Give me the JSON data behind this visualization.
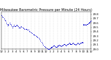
{
  "title": "Milwaukee Barometric Pressure per Minute (24 Hours)",
  "title_fontsize": 3.5,
  "bg_color": "#ffffff",
  "dot_color": "#0000cc",
  "dot_size": 0.5,
  "grid_color": "#bbbbbb",
  "tick_color": "#000000",
  "ylabel_fontsize": 2.8,
  "xlabel_fontsize": 2.8,
  "xlim": [
    0,
    1440
  ],
  "ylim": [
    29.0,
    29.85
  ],
  "yticks": [
    29.0,
    29.1,
    29.2,
    29.3,
    29.4,
    29.5,
    29.6,
    29.7,
    29.8
  ],
  "ytick_labels": [
    "29.0",
    "29.1",
    "29.2",
    "29.3",
    "29.4",
    "29.5",
    "29.6",
    "29.7",
    "29.8"
  ],
  "xticks": [
    0,
    60,
    120,
    180,
    240,
    300,
    360,
    420,
    480,
    540,
    600,
    660,
    720,
    780,
    840,
    900,
    960,
    1020,
    1080,
    1140,
    1200,
    1260,
    1320,
    1380,
    1440
  ],
  "xtick_labels": [
    "12",
    "1",
    "2",
    "3",
    "4",
    "5",
    "6",
    "7",
    "8",
    "9",
    "10",
    "11",
    "12",
    "1",
    "2",
    "3",
    "4",
    "5",
    "6",
    "7",
    "8",
    "9",
    "10",
    "11",
    "12"
  ],
  "pressure_data": [
    [
      0,
      29.78
    ],
    [
      15,
      29.75
    ],
    [
      30,
      29.73
    ],
    [
      45,
      29.7
    ],
    [
      60,
      29.67
    ],
    [
      70,
      29.65
    ],
    [
      80,
      29.6
    ],
    [
      90,
      29.57
    ],
    [
      100,
      29.54
    ],
    [
      110,
      29.56
    ],
    [
      120,
      29.58
    ],
    [
      135,
      29.6
    ],
    [
      150,
      29.58
    ],
    [
      160,
      29.55
    ],
    [
      170,
      29.52
    ],
    [
      180,
      29.5
    ],
    [
      190,
      29.52
    ],
    [
      200,
      29.55
    ],
    [
      210,
      29.53
    ],
    [
      225,
      29.52
    ],
    [
      240,
      29.54
    ],
    [
      250,
      29.56
    ],
    [
      260,
      29.54
    ],
    [
      270,
      29.52
    ],
    [
      280,
      29.5
    ],
    [
      290,
      29.49
    ],
    [
      300,
      29.5
    ],
    [
      315,
      29.52
    ],
    [
      330,
      29.51
    ],
    [
      345,
      29.49
    ],
    [
      360,
      29.48
    ],
    [
      375,
      29.47
    ],
    [
      390,
      29.46
    ],
    [
      405,
      29.46
    ],
    [
      420,
      29.45
    ],
    [
      435,
      29.44
    ],
    [
      450,
      29.42
    ],
    [
      465,
      29.4
    ],
    [
      480,
      29.38
    ],
    [
      495,
      29.36
    ],
    [
      510,
      29.34
    ],
    [
      525,
      29.33
    ],
    [
      540,
      29.32
    ],
    [
      555,
      29.3
    ],
    [
      570,
      29.29
    ],
    [
      585,
      29.27
    ],
    [
      600,
      29.25
    ],
    [
      615,
      29.22
    ],
    [
      630,
      29.19
    ],
    [
      645,
      29.16
    ],
    [
      660,
      29.13
    ],
    [
      675,
      29.1
    ],
    [
      690,
      29.07
    ],
    [
      705,
      29.05
    ],
    [
      720,
      29.03
    ],
    [
      735,
      29.02
    ],
    [
      750,
      29.01
    ],
    [
      760,
      29.0
    ],
    [
      770,
      29.01
    ],
    [
      780,
      29.02
    ],
    [
      790,
      29.03
    ],
    [
      800,
      29.04
    ],
    [
      810,
      29.05
    ],
    [
      820,
      29.06
    ],
    [
      830,
      29.07
    ],
    [
      840,
      29.08
    ],
    [
      850,
      29.08
    ],
    [
      860,
      29.07
    ],
    [
      870,
      29.06
    ],
    [
      880,
      29.05
    ],
    [
      890,
      29.06
    ],
    [
      900,
      29.07
    ],
    [
      910,
      29.08
    ],
    [
      920,
      29.09
    ],
    [
      930,
      29.1
    ],
    [
      940,
      29.09
    ],
    [
      950,
      29.08
    ],
    [
      960,
      29.07
    ],
    [
      970,
      29.08
    ],
    [
      980,
      29.09
    ],
    [
      990,
      29.1
    ],
    [
      1000,
      29.11
    ],
    [
      1010,
      29.12
    ],
    [
      1020,
      29.11
    ],
    [
      1030,
      29.1
    ],
    [
      1040,
      29.09
    ],
    [
      1050,
      29.1
    ],
    [
      1060,
      29.11
    ],
    [
      1070,
      29.12
    ],
    [
      1080,
      29.13
    ],
    [
      1090,
      29.14
    ],
    [
      1100,
      29.13
    ],
    [
      1110,
      29.12
    ],
    [
      1120,
      29.11
    ],
    [
      1130,
      29.12
    ],
    [
      1140,
      29.13
    ],
    [
      1150,
      29.14
    ],
    [
      1160,
      29.13
    ],
    [
      1170,
      29.12
    ],
    [
      1180,
      29.11
    ],
    [
      1190,
      29.1
    ],
    [
      1200,
      29.11
    ],
    [
      1210,
      29.12
    ],
    [
      1220,
      29.13
    ],
    [
      1230,
      29.14
    ],
    [
      1240,
      29.13
    ],
    [
      1250,
      29.12
    ],
    [
      1260,
      29.13
    ],
    [
      1270,
      29.14
    ],
    [
      1280,
      29.15
    ],
    [
      1290,
      29.16
    ],
    [
      1300,
      29.15
    ],
    [
      1310,
      29.16
    ],
    [
      1315,
      29.55
    ],
    [
      1320,
      29.57
    ],
    [
      1330,
      29.56
    ],
    [
      1340,
      29.57
    ],
    [
      1350,
      29.55
    ],
    [
      1360,
      29.56
    ],
    [
      1370,
      29.57
    ],
    [
      1380,
      29.58
    ],
    [
      1390,
      29.59
    ],
    [
      1400,
      29.6
    ],
    [
      1410,
      29.61
    ],
    [
      1420,
      29.62
    ],
    [
      1430,
      29.63
    ],
    [
      1440,
      29.65
    ]
  ]
}
